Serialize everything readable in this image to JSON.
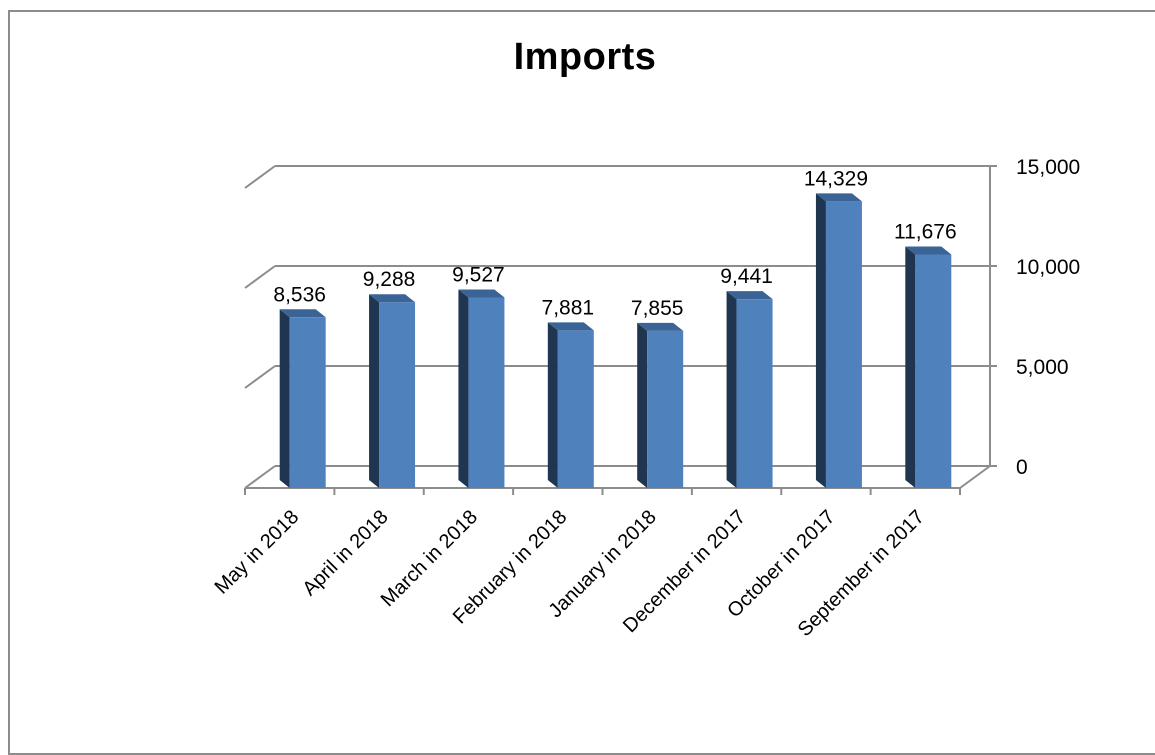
{
  "chart_data": {
    "type": "bar",
    "title": "Imports",
    "xlabel": "",
    "ylabel": "",
    "categories": [
      "May in 2018",
      "April in 2018",
      "March in 2018",
      "February in 2018",
      "January in 2018",
      "December in 2017",
      "October in 2017",
      "September in 2017"
    ],
    "values": [
      8536,
      9288,
      9527,
      7881,
      7855,
      9441,
      14329,
      11676
    ],
    "data_labels": [
      "8,536",
      "9,288",
      "9,527",
      "7,881",
      "7,855",
      "9,441",
      "14,329",
      "11,676"
    ],
    "ylim": [
      0,
      15000
    ],
    "yticks": [
      0,
      5000,
      10000,
      15000
    ],
    "ytick_labels": [
      "0",
      "5,000",
      "10,000",
      "15,000"
    ],
    "y_axis_side": "right",
    "grid": true,
    "legend": "none",
    "bar_style": "3d",
    "colors": {
      "bar_front": "#4f81bd",
      "bar_side": "#1f3550",
      "bar_top": "#3a6496",
      "grid": "#8c8c8c",
      "axis": "#8c8c8c",
      "frame": "#8c8c8c"
    }
  }
}
